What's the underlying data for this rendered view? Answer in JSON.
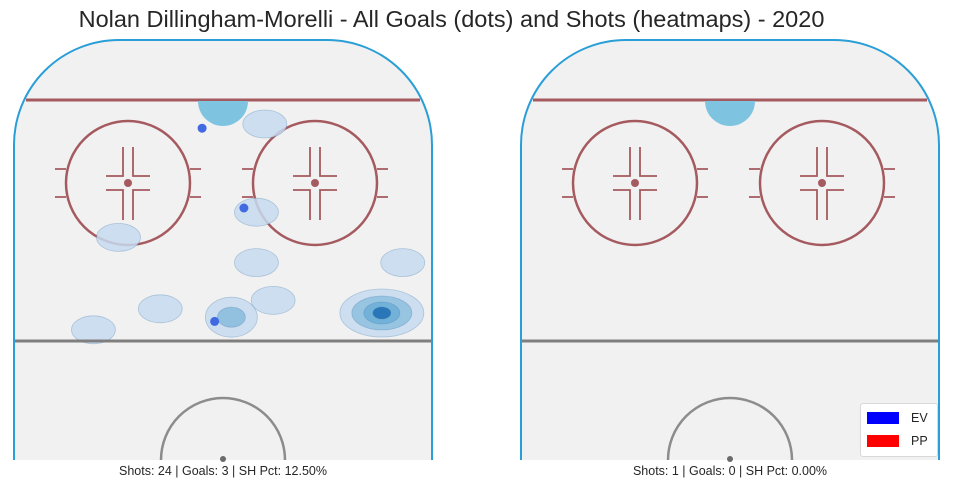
{
  "title": "Nolan Dillingham-Morelli - All Goals (dots) and Shots (heatmaps) - 2020",
  "legend": {
    "items": [
      {
        "label": "EV",
        "color": "#0000ff"
      },
      {
        "label": "PP",
        "color": "#ff0000"
      }
    ]
  },
  "colors": {
    "board": "#2a9ed6",
    "ice": "#f1f1f1",
    "faceoff_circle": "#a55a5f",
    "neutral_line": "#7f7f7f",
    "crease": "#7ec4e1",
    "heat_low": "#c6dbef",
    "heat_mid": "#6baed6",
    "heat_high": "#2171b5",
    "goal_dot": "#4169e1"
  },
  "chart_data": [
    {
      "type": "heatmap",
      "panel": "left",
      "caption": "Shots: 24 | Goals: 3 | SH Pct: 12.50%",
      "goals": [
        {
          "x": 0.45,
          "y": 0.21,
          "strength": "EV"
        },
        {
          "x": 0.55,
          "y": 0.4,
          "strength": "EV"
        },
        {
          "x": 0.48,
          "y": 0.67,
          "strength": "EV"
        }
      ],
      "shot_density": [
        {
          "x": 0.88,
          "y": 0.65,
          "level": 3
        },
        {
          "x": 0.52,
          "y": 0.66,
          "level": 2
        },
        {
          "x": 0.62,
          "y": 0.62,
          "level": 1
        },
        {
          "x": 0.35,
          "y": 0.64,
          "level": 1
        },
        {
          "x": 0.58,
          "y": 0.41,
          "level": 1
        },
        {
          "x": 0.58,
          "y": 0.53,
          "level": 1
        },
        {
          "x": 0.6,
          "y": 0.2,
          "level": 1
        },
        {
          "x": 0.25,
          "y": 0.47,
          "level": 1
        },
        {
          "x": 0.19,
          "y": 0.69,
          "level": 1
        },
        {
          "x": 0.93,
          "y": 0.53,
          "level": 1
        }
      ]
    },
    {
      "type": "heatmap",
      "panel": "right",
      "caption": "Shots: 1 | Goals: 0 | SH Pct: 0.00%",
      "goals": [],
      "shot_density": []
    }
  ]
}
